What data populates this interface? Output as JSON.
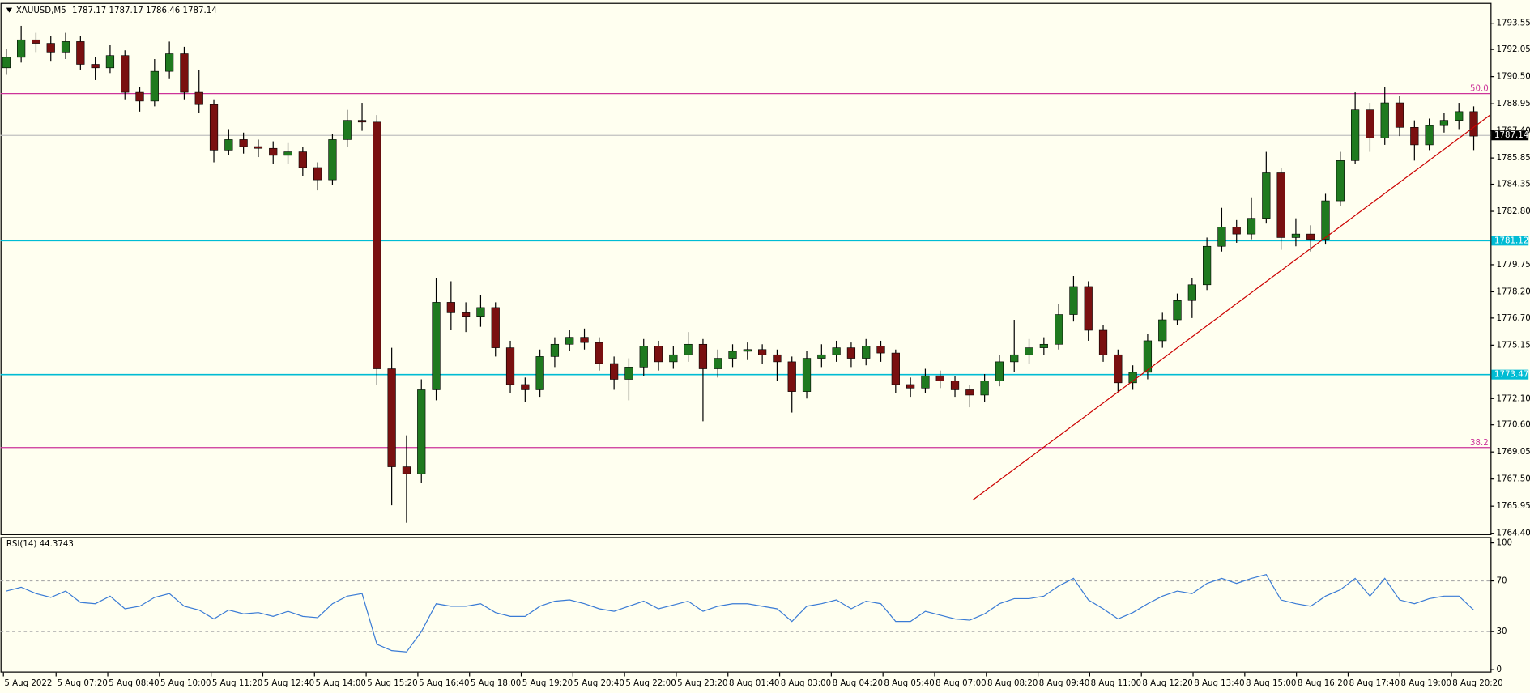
{
  "chart_data": {
    "type": "candlestick",
    "title": "XAUUSD,M5",
    "ohlc_label": "1787.17 1787.17 1786.46 1787.14",
    "up_color": "#1f7a1f",
    "down_color": "#7a1010",
    "wick_color": "#000000",
    "open": [
      1791.0,
      1791.6,
      1792.6,
      1792.4,
      1791.9,
      1792.5,
      1791.2,
      1791.0,
      1791.7,
      1789.6,
      1789.1,
      1790.8,
      1791.8,
      1789.6,
      1788.9,
      1786.3,
      1786.9,
      1786.5,
      1786.4,
      1786.0,
      1786.2,
      1785.3,
      1784.6,
      1786.9,
      1788.0,
      1787.9,
      1773.8,
      1768.2,
      1767.8,
      1772.6,
      1777.6,
      1777.0,
      1776.8,
      1777.3,
      1775.0,
      1772.9,
      1772.6,
      1774.5,
      1775.2,
      1775.6,
      1775.3,
      1774.1,
      1773.2,
      1773.9,
      1775.1,
      1774.2,
      1774.6,
      1775.2,
      1773.8,
      1774.4,
      1774.8,
      1774.9,
      1774.6,
      1774.2,
      1772.5,
      1774.4,
      1774.6,
      1775.0,
      1774.4,
      1775.1,
      1774.7,
      1772.9,
      1772.7,
      1773.4,
      1773.1,
      1772.6,
      1772.3,
      1773.1,
      1774.2,
      1774.6,
      1775.0,
      1775.2,
      1776.9,
      1778.5,
      1776.0,
      1774.6,
      1773.0,
      1773.6,
      1775.4,
      1776.6,
      1777.7,
      1778.6,
      1780.8,
      1781.9,
      1781.5,
      1782.4,
      1785.0,
      1781.3,
      1781.5,
      1781.2,
      1783.4,
      1785.7,
      1788.6,
      1787.0,
      1789.0,
      1787.6,
      1786.6,
      1787.7,
      1788.0,
      1788.5
    ],
    "high": [
      1792.1,
      1793.4,
      1793.0,
      1792.8,
      1793.0,
      1792.8,
      1791.6,
      1792.3,
      1792.0,
      1789.9,
      1791.5,
      1792.5,
      1792.2,
      1790.9,
      1789.2,
      1787.5,
      1787.3,
      1786.9,
      1786.8,
      1786.7,
      1786.5,
      1785.6,
      1787.2,
      1788.6,
      1789.0,
      1788.3,
      1775.0,
      1770.0,
      1773.2,
      1779.0,
      1778.8,
      1777.6,
      1778.0,
      1777.6,
      1775.4,
      1773.3,
      1774.9,
      1775.6,
      1776.0,
      1776.1,
      1775.6,
      1774.5,
      1774.4,
      1775.5,
      1775.4,
      1775.1,
      1775.9,
      1775.5,
      1774.9,
      1775.2,
      1775.3,
      1775.2,
      1774.9,
      1774.5,
      1774.8,
      1775.2,
      1775.4,
      1775.3,
      1775.5,
      1775.4,
      1774.9,
      1773.3,
      1773.8,
      1773.7,
      1773.4,
      1772.9,
      1773.5,
      1774.6,
      1776.6,
      1775.5,
      1775.6,
      1777.5,
      1779.1,
      1778.8,
      1776.3,
      1774.9,
      1774.0,
      1775.8,
      1777.0,
      1778.1,
      1779.0,
      1781.3,
      1783.0,
      1782.3,
      1783.6,
      1786.2,
      1785.3,
      1782.4,
      1782.0,
      1783.8,
      1786.2,
      1789.6,
      1789.0,
      1789.9,
      1789.4,
      1788.0,
      1788.1,
      1788.4,
      1789.0,
      1788.8
    ],
    "low": [
      1790.6,
      1791.3,
      1791.9,
      1791.4,
      1791.5,
      1790.9,
      1790.3,
      1790.7,
      1789.2,
      1788.5,
      1788.8,
      1790.4,
      1789.2,
      1788.4,
      1785.6,
      1786.0,
      1786.1,
      1785.9,
      1785.5,
      1785.5,
      1784.8,
      1784.0,
      1784.3,
      1786.5,
      1787.4,
      1772.9,
      1766.0,
      1765.0,
      1767.3,
      1772.0,
      1776.0,
      1775.9,
      1776.2,
      1774.5,
      1772.4,
      1771.9,
      1772.2,
      1773.9,
      1774.8,
      1774.9,
      1773.7,
      1772.6,
      1772.0,
      1773.4,
      1773.7,
      1773.8,
      1774.2,
      1770.8,
      1773.3,
      1773.9,
      1774.3,
      1774.1,
      1773.1,
      1771.3,
      1772.1,
      1773.9,
      1774.2,
      1773.9,
      1774.0,
      1774.2,
      1772.4,
      1772.2,
      1772.4,
      1772.7,
      1772.2,
      1771.6,
      1771.9,
      1772.8,
      1773.6,
      1774.1,
      1774.6,
      1774.9,
      1776.5,
      1775.4,
      1774.2,
      1772.5,
      1772.6,
      1773.2,
      1775.0,
      1776.3,
      1776.7,
      1778.3,
      1780.5,
      1781.0,
      1781.2,
      1782.1,
      1780.6,
      1780.8,
      1780.5,
      1780.9,
      1783.1,
      1785.5,
      1786.2,
      1786.6,
      1787.1,
      1785.7,
      1786.3,
      1787.3,
      1787.5,
      1786.3
    ],
    "close": [
      1791.6,
      1792.6,
      1792.4,
      1791.9,
      1792.5,
      1791.2,
      1791.0,
      1791.7,
      1789.6,
      1789.1,
      1790.8,
      1791.8,
      1789.6,
      1788.9,
      1786.3,
      1786.9,
      1786.5,
      1786.4,
      1786.0,
      1786.2,
      1785.3,
      1784.6,
      1786.9,
      1788.0,
      1787.9,
      1773.8,
      1768.2,
      1767.8,
      1772.6,
      1777.6,
      1777.0,
      1776.8,
      1777.3,
      1775.0,
      1772.9,
      1772.6,
      1774.5,
      1775.2,
      1775.6,
      1775.3,
      1774.1,
      1773.2,
      1773.9,
      1775.1,
      1774.2,
      1774.6,
      1775.2,
      1773.8,
      1774.4,
      1774.8,
      1774.9,
      1774.6,
      1774.2,
      1772.5,
      1774.4,
      1774.6,
      1775.0,
      1774.4,
      1775.1,
      1774.7,
      1772.9,
      1772.7,
      1773.4,
      1773.1,
      1772.6,
      1772.3,
      1773.1,
      1774.2,
      1774.6,
      1775.0,
      1775.2,
      1776.9,
      1778.5,
      1776.0,
      1774.6,
      1773.0,
      1773.6,
      1775.4,
      1776.6,
      1777.7,
      1778.6,
      1780.8,
      1781.9,
      1781.5,
      1782.4,
      1785.0,
      1781.3,
      1781.5,
      1781.2,
      1783.4,
      1785.7,
      1788.6,
      1787.0,
      1789.0,
      1787.6,
      1786.6,
      1787.7,
      1788.0,
      1788.5,
      1787.1
    ],
    "ylim": [
      1764.35,
      1794.6
    ],
    "yticks": [
      1793.55,
      1792.05,
      {
        "value": 1790.5,
        "label": "1790.50"
      },
      1788.95,
      {
        "value": 1787.4,
        "label": "1787.40"
      },
      1785.85,
      1784.35,
      {
        "value": 1782.8,
        "label": "1782.80"
      },
      1779.75,
      {
        "value": 1778.2,
        "label": "1778.20"
      },
      {
        "value": 1776.7,
        "label": "1776.70"
      },
      1775.15,
      {
        "value": 1772.1,
        "label": "1772.10"
      },
      {
        "value": 1770.6,
        "label": "1770.60"
      },
      1769.05,
      {
        "value": 1767.5,
        "label": "1767.50"
      },
      1765.95,
      {
        "value": 1764.4,
        "label": "1764.40"
      }
    ],
    "xtick_labels": [
      "5 Aug 2022",
      "5 Aug 07:20",
      "5 Aug 08:40",
      "5 Aug 10:00",
      "5 Aug 11:20",
      "5 Aug 12:40",
      "5 Aug 14:00",
      "5 Aug 15:20",
      "5 Aug 16:40",
      "5 Aug 18:00",
      "5 Aug 19:20",
      "5 Aug 20:40",
      "5 Aug 22:00",
      "5 Aug 23:20",
      "8 Aug 01:40",
      "8 Aug 03:00",
      "8 Aug 04:20",
      "8 Aug 05:40",
      "8 Aug 07:00",
      "8 Aug 08:20",
      "8 Aug 09:40",
      "8 Aug 11:00",
      "8 Aug 12:20",
      "8 Aug 13:40",
      "8 Aug 15:00",
      "8 Aug 16:20",
      "8 Aug 17:40",
      "8 Aug 19:00",
      "8 Aug 20:20"
    ],
    "fib_levels": [
      {
        "value": 1789.53,
        "label": "50.0",
        "color": "#cc3399"
      },
      {
        "value": 1769.3,
        "label": "38.2",
        "color": "#cc3399"
      }
    ],
    "hlines": [
      {
        "value": 1781.12,
        "color": "#00bcd4"
      },
      {
        "value": 1773.47,
        "color": "#00bcd4"
      }
    ],
    "last_price": 1787.14,
    "last_price_color": "#c0c0c0",
    "trendline": {
      "x": [
        65.2,
        100.1
      ],
      "y": [
        1766.3,
        1788.3
      ],
      "color": "#cc0000"
    },
    "rsi": {
      "label": "RSI(14) 44.3743",
      "color": "#3a7bd5",
      "ylim": [
        0,
        100
      ],
      "yticks": [
        100,
        70,
        30,
        0
      ],
      "levels": [
        70,
        30
      ],
      "values": [
        62,
        65,
        60,
        57,
        62,
        53,
        52,
        58,
        48,
        50,
        57,
        60,
        50,
        47,
        40,
        47,
        44,
        45,
        42,
        46,
        42,
        41,
        52,
        58,
        60,
        20,
        15,
        14,
        30,
        52,
        50,
        50,
        52,
        45,
        42,
        42,
        50,
        54,
        55,
        52,
        48,
        46,
        50,
        54,
        48,
        51,
        54,
        46,
        50,
        52,
        52,
        50,
        48,
        38,
        50,
        52,
        55,
        48,
        54,
        52,
        38,
        38,
        46,
        43,
        40,
        39,
        44,
        52,
        56,
        56,
        58,
        66,
        72,
        55,
        48,
        40,
        45,
        52,
        58,
        62,
        60,
        68,
        72,
        68,
        72,
        75,
        55,
        52,
        50,
        58,
        63,
        72,
        58,
        72,
        55,
        52,
        56,
        58,
        58,
        47
      ]
    }
  }
}
